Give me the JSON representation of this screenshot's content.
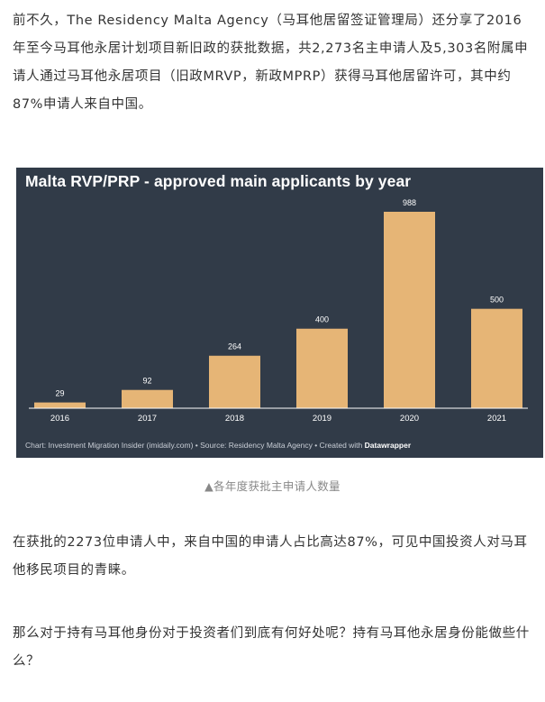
{
  "article": {
    "paragraph_1": "前不久，The Residency Malta Agency（马耳他居留签证管理局）还分享了2016年至今马耳他永居计划项目新旧政的获批数据，共2,273名主申请人及5,303名附属申请人通过马耳他永居项目（旧政MRVP，新政MPRP）获得马耳他居留许可，其中约87%申请人来自中国。",
    "caption": "▲各年度获批主申请人数量",
    "paragraph_2": "在获批的2273位申请人中，来自中国的申请人占比高达87%，可见中国投资人对马耳他移民项目的青睐。",
    "paragraph_3": "那么对于持有马耳他身份对于投资者们到底有何好处呢？持有马耳他永居身份能做些什么？"
  },
  "chart_data": {
    "type": "bar",
    "title": "Malta RVP/PRP - approved main applicants by year",
    "categories": [
      "2016",
      "2017",
      "2018",
      "2019",
      "2020",
      "2021"
    ],
    "values": [
      29,
      92,
      264,
      400,
      988,
      500
    ],
    "xlabel": "",
    "ylabel": "",
    "ylim": [
      0,
      988
    ],
    "grid": false,
    "data_labels": true,
    "source_prefix": "Chart: Investment Migration Insider (imidaily.com) • Source: Residency Malta Agency • Created with ",
    "source_brand": "Datawrapper",
    "colors": {
      "background": "#313b48",
      "bar": "#e6b576",
      "text": "#ffffff",
      "baseline": "#ffffff"
    }
  }
}
